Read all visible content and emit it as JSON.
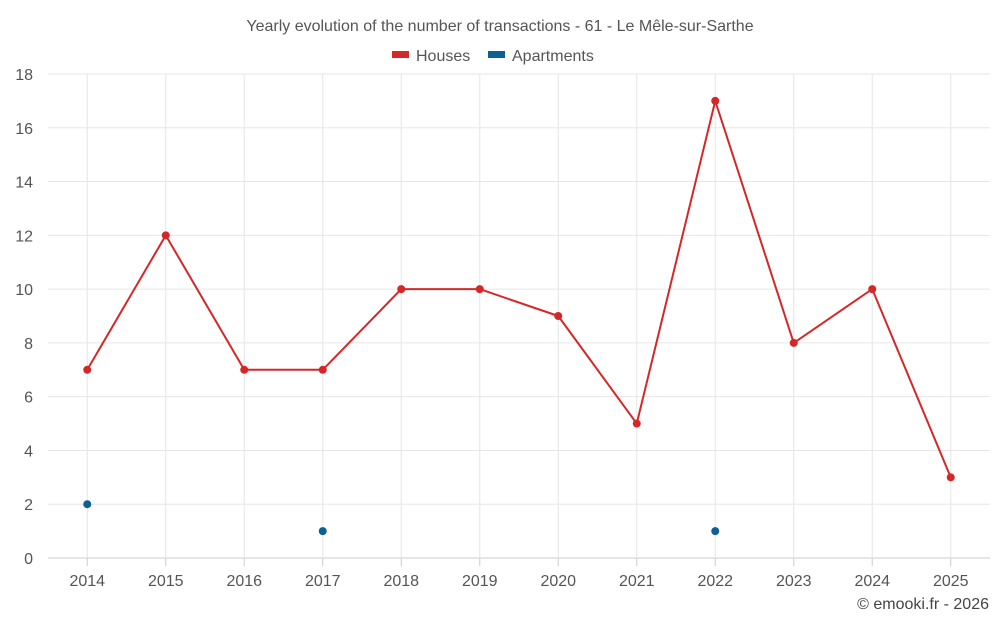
{
  "chart_data": {
    "type": "line",
    "title": "Yearly evolution of the number of transactions - 61 - Le Mêle-sur-Sarthe",
    "categories": [
      "2014",
      "2015",
      "2016",
      "2017",
      "2018",
      "2019",
      "2020",
      "2021",
      "2022",
      "2023",
      "2024",
      "2025"
    ],
    "ylim": [
      0,
      18
    ],
    "yticks": [
      0,
      2,
      4,
      6,
      8,
      10,
      12,
      14,
      16,
      18
    ],
    "grid": true,
    "legend_position": "top-center",
    "series": [
      {
        "name": "Houses",
        "color": "#d62728",
        "values": [
          7,
          12,
          7,
          7,
          10,
          10,
          9,
          5,
          17,
          8,
          10,
          3
        ],
        "line": true
      },
      {
        "name": "Apartments",
        "color": "#0b6094",
        "values": [
          2,
          null,
          null,
          1,
          null,
          null,
          null,
          null,
          1,
          null,
          null,
          null
        ],
        "line": false
      }
    ],
    "xlabel": "",
    "ylabel": ""
  },
  "credit": "© emooki.fr - 2026"
}
